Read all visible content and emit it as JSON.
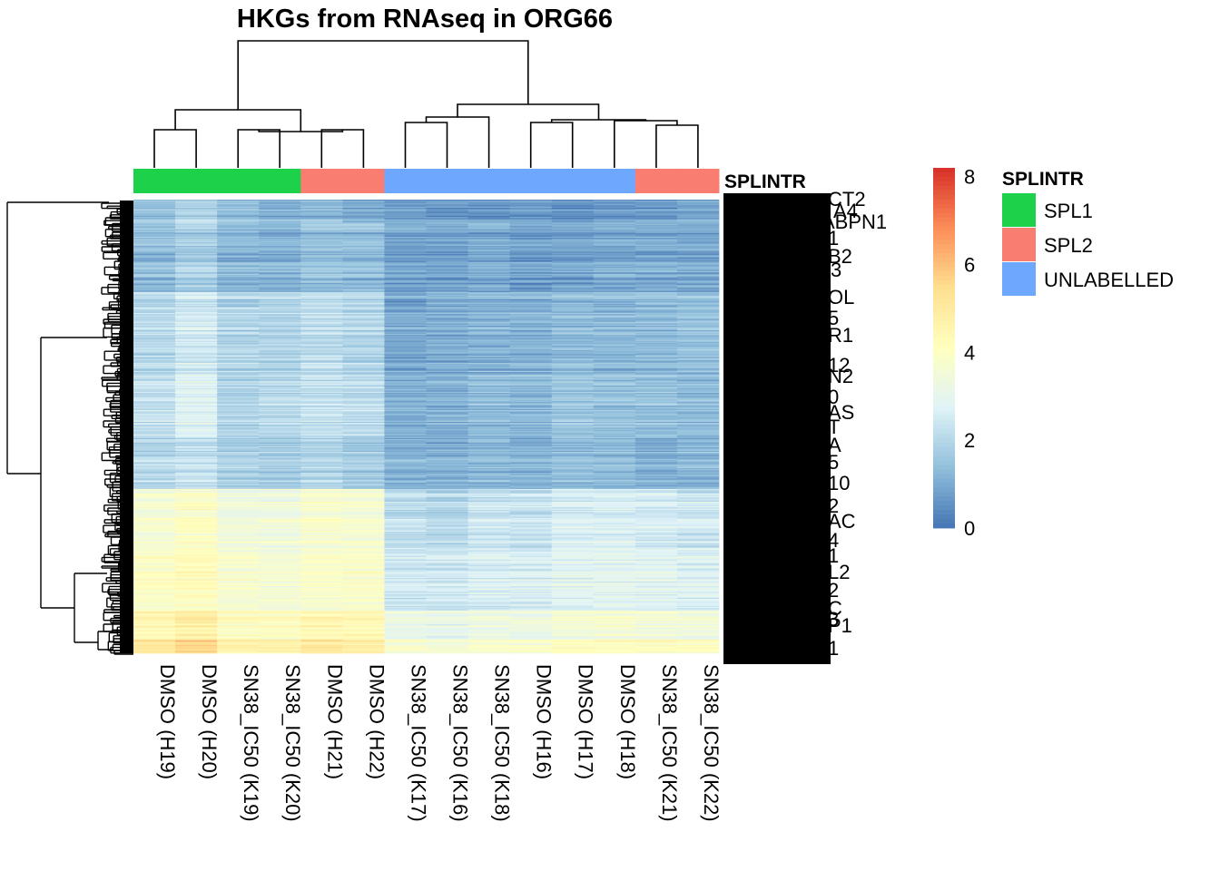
{
  "chart_data": {
    "type": "heatmap",
    "title": "HKGs from RNAseq in ORG66",
    "columns": [
      "DMSO (H19)",
      "DMSO (H20)",
      "SN38_IC50 (K19)",
      "SN38_IC50 (K20)",
      "DMSO (H21)",
      "DMSO (H22)",
      "SN38_IC50 (K17)",
      "SN38_IC50 (K16)",
      "SN38_IC50 (K18)",
      "DMSO (H16)",
      "DMSO (H17)",
      "DMSO (H18)",
      "SN38_IC50 (K21)",
      "SN38_IC50 (K22)"
    ],
    "annotation": {
      "name": "SPLINTR",
      "column_groups": [
        "SPL1",
        "SPL1",
        "SPL1",
        "SPL1",
        "SPL2",
        "SPL2",
        "UNLABELLED",
        "UNLABELLED",
        "UNLABELLED",
        "UNLABELLED",
        "UNLABELLED",
        "UNLABELLED",
        "SPL2",
        "SPL2"
      ],
      "legend": [
        {
          "label": "SPL1",
          "color": "#1ed14b"
        },
        {
          "label": "SPL2",
          "color": "#fa7d71"
        },
        {
          "label": "UNLABELLED",
          "color": "#6ea8fe"
        }
      ]
    },
    "color_scale": {
      "min": 0,
      "max": 8.2,
      "ticks": [
        0,
        2,
        4,
        6,
        8
      ],
      "palette": [
        "#4575b4",
        "#91bfdb",
        "#e0f3f8",
        "#ffffbf",
        "#fee090",
        "#fc8d59",
        "#d73027"
      ]
    },
    "row_blocks": [
      {
        "rows": 20,
        "values": [
          1.5,
          2.0,
          1.5,
          1.2,
          1.3,
          1.0,
          0.8,
          0.7,
          0.7,
          0.8,
          0.6,
          0.8,
          0.8,
          1.0
        ]
      },
      {
        "rows": 60,
        "values": [
          1.3,
          1.7,
          1.2,
          1.1,
          1.4,
          1.3,
          0.8,
          0.8,
          0.9,
          0.7,
          0.8,
          0.9,
          0.9,
          0.9
        ]
      },
      {
        "rows": 70,
        "values": [
          2.0,
          2.4,
          1.9,
          1.9,
          2.1,
          1.9,
          0.9,
          1.0,
          1.1,
          1.1,
          1.3,
          1.2,
          1.3,
          1.4
        ]
      },
      {
        "rows": 55,
        "values": [
          2.3,
          2.8,
          2.0,
          2.1,
          2.3,
          2.2,
          1.2,
          1.2,
          1.4,
          1.3,
          1.6,
          1.5,
          1.5,
          1.4
        ]
      },
      {
        "rows": 45,
        "values": [
          2.0,
          2.2,
          1.8,
          1.7,
          1.9,
          1.7,
          1.1,
          1.1,
          1.2,
          1.1,
          1.3,
          1.3,
          1.1,
          1.2
        ]
      },
      {
        "rows": 50,
        "values": [
          3.6,
          3.9,
          3.4,
          3.4,
          3.7,
          3.6,
          2.1,
          2.0,
          2.3,
          2.3,
          2.6,
          2.7,
          2.5,
          2.4
        ]
      },
      {
        "rows": 55,
        "values": [
          4.0,
          4.2,
          3.8,
          3.7,
          3.9,
          3.9,
          2.5,
          2.5,
          2.7,
          2.7,
          2.9,
          3.0,
          2.9,
          2.8
        ]
      },
      {
        "rows": 25,
        "values": [
          4.5,
          4.9,
          4.2,
          4.1,
          4.5,
          4.4,
          3.2,
          3.1,
          3.3,
          3.3,
          3.6,
          3.7,
          3.6,
          3.5
        ]
      },
      {
        "rows": 12,
        "values": [
          5.3,
          5.8,
          4.9,
          4.8,
          5.2,
          5.0,
          3.9,
          3.8,
          4.0,
          4.0,
          4.3,
          4.4,
          4.3,
          4.2
        ]
      }
    ]
  },
  "annotation_title": "SPLINTR",
  "legend_title": "SPLINTR",
  "legend_items": [
    {
      "label": "SPL1",
      "color": "#1ed14b"
    },
    {
      "label": "SPL2",
      "color": "#fa7d71"
    },
    {
      "label": "UNLABELLED",
      "color": "#6ea8fe"
    }
  ],
  "row_label_fragments": [
    "CT2",
    "A4",
    "ABPN1",
    "1",
    "B2",
    "3",
    "OL",
    "5",
    "R1",
    "12",
    "N2",
    "0",
    "AS",
    "T",
    "A",
    "5",
    "10",
    "2",
    "AC",
    "4",
    "1",
    "L2",
    "2",
    "C",
    "3",
    "P1",
    "1"
  ]
}
